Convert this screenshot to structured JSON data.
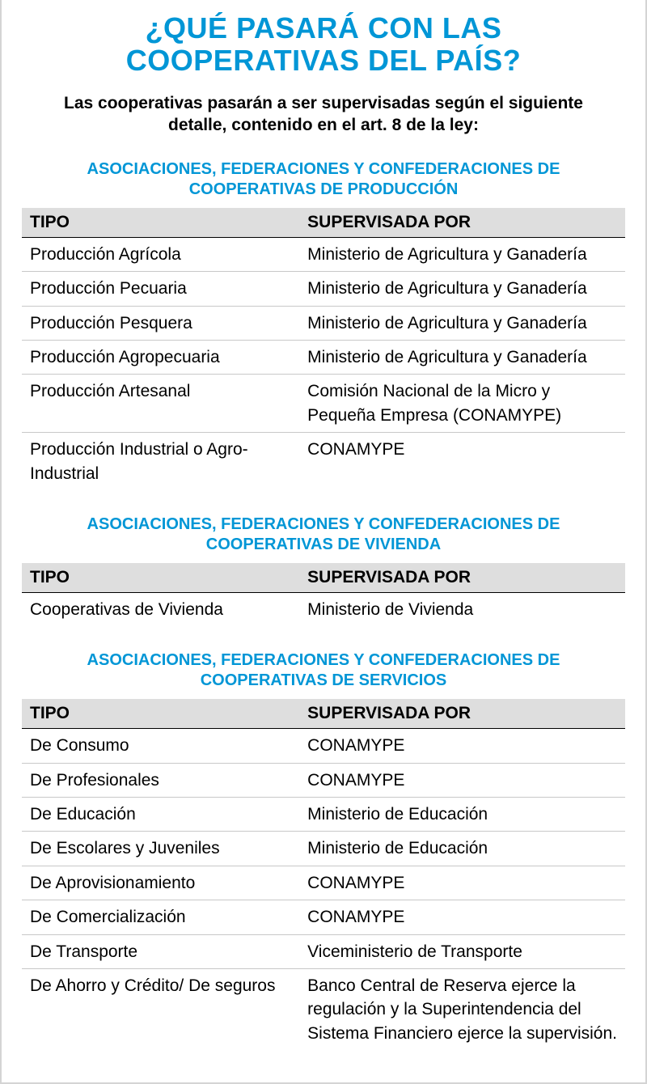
{
  "title": "¿QUÉ PASARÁ CON LAS COOPERATIVAS DEL PAÍS?",
  "subtitle": "Las cooperativas pasarán a ser supervisadas según el siguiente detalle, contenido en el art. 8 de la ley:",
  "columns": {
    "tipo": "TIPO",
    "supervisada": "SUPERVISADA POR"
  },
  "sections": [
    {
      "heading": "ASOCIACIONES, FEDERACIONES Y CONFEDERACIONES DE COOPERATIVAS DE PRODUCCIÓN",
      "rows": [
        {
          "tipo": "Producción Agrícola",
          "sup": "Ministerio de Agricultura y Ganadería"
        },
        {
          "tipo": "Producción Pecuaria",
          "sup": "Ministerio de Agricultura y Ganadería"
        },
        {
          "tipo": "Producción Pesquera",
          "sup": "Ministerio de Agricultura y Ganadería"
        },
        {
          "tipo": "Producción Agropecuaria",
          "sup": "Ministerio de Agricultura y Ganadería"
        },
        {
          "tipo": "Producción Artesanal",
          "sup": "Comisión Nacional de la Micro y Pequeña Empresa (CONAMYPE)"
        },
        {
          "tipo": "Producción Industrial o Agro-Industrial",
          "sup": "CONAMYPE"
        }
      ]
    },
    {
      "heading": "ASOCIACIONES, FEDERACIONES Y CONFEDERACIONES DE COOPERATIVAS DE VIVIENDA",
      "rows": [
        {
          "tipo": "Cooperativas de Vivienda",
          "sup": "Ministerio de Vivienda"
        }
      ]
    },
    {
      "heading": "ASOCIACIONES, FEDERACIONES Y CONFEDERACIONES DE COOPERATIVAS DE SERVICIOS",
      "rows": [
        {
          "tipo": "De Consumo",
          "sup": "CONAMYPE"
        },
        {
          "tipo": "De Profesionales",
          "sup": "CONAMYPE"
        },
        {
          "tipo": "De Educación",
          "sup": "Ministerio de Educación"
        },
        {
          "tipo": "De Escolares y Juveniles",
          "sup": "Ministerio de Educación"
        },
        {
          "tipo": "De Aprovisionamiento",
          "sup": "CONAMYPE"
        },
        {
          "tipo": "De Comercialización",
          "sup": "CONAMYPE"
        },
        {
          "tipo": "De Transporte",
          "sup": "Viceministerio de Transporte"
        },
        {
          "tipo": "De Ahorro y Crédito/ De seguros",
          "sup": "Banco Central de Reserva ejerce la regulación y la Superintendencia del Sistema Financiero ejerce la supervisión."
        }
      ]
    }
  ],
  "colors": {
    "accent": "#0096d6",
    "header_bg": "#dedede",
    "border": "#d4d4d4",
    "row_border": "#c8c8c8",
    "text": "#000000",
    "background": "#ffffff"
  },
  "typography": {
    "title_fontsize": 36,
    "subtitle_fontsize": 21,
    "section_heading_fontsize": 20,
    "body_fontsize": 21,
    "title_weight": 900,
    "heading_weight": 700
  }
}
